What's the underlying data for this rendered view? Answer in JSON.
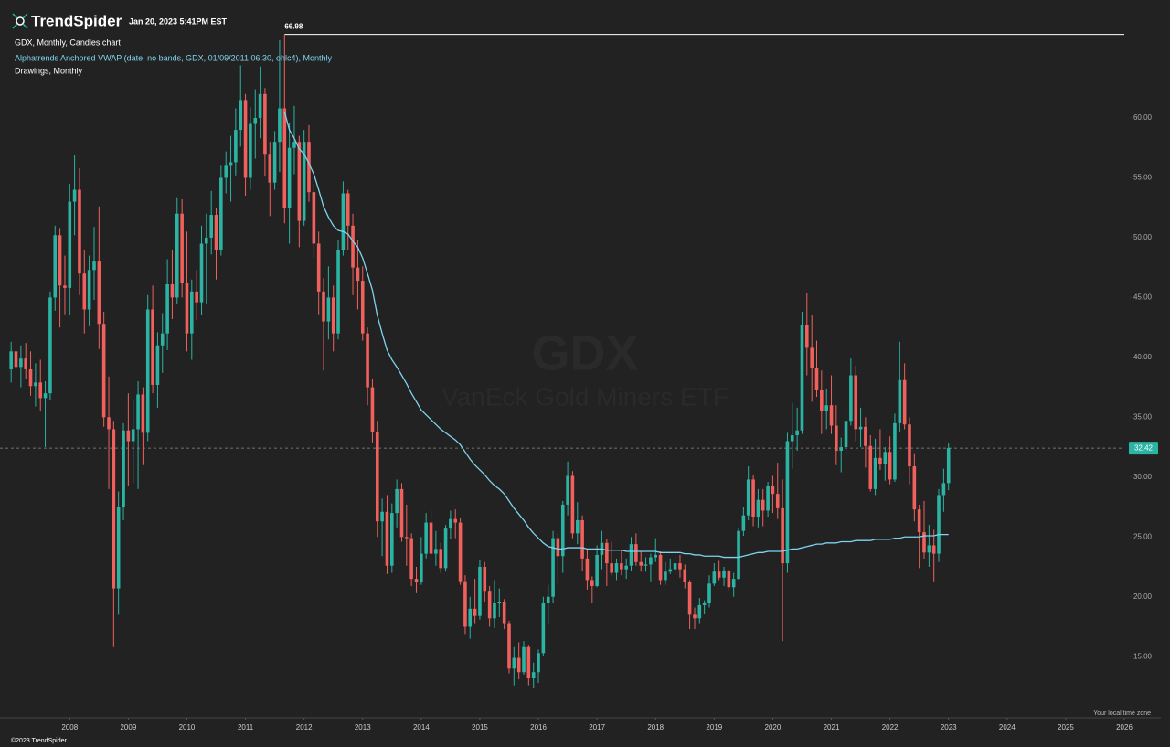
{
  "chart_data": {
    "type": "candlestick",
    "brand": "TrendSpider",
    "timestamp": "Jan 20, 2023 5:41PM EST",
    "title": "GDX, Monthly, Candles chart",
    "drawings": "Drawings, Monthly",
    "watermark_symbol": "GDX",
    "watermark_name": "VanEck Gold Miners ETF",
    "timezone_note": "Your local time zone",
    "copyright": "©2023 TrendSpider",
    "up_color": "#2bb3a3",
    "down_color": "#f0605d",
    "x": [
      2007,
      2007.083,
      2007.167,
      2007.25,
      2007.333,
      2007.417,
      2007.5,
      2007.583,
      2007.667,
      2007.75,
      2007.833,
      2007.917,
      2008,
      2008.083,
      2008.167,
      2008.25,
      2008.333,
      2008.417,
      2008.5,
      2008.583,
      2008.667,
      2008.75,
      2008.833,
      2008.917,
      2009,
      2009.083,
      2009.167,
      2009.25,
      2009.333,
      2009.417,
      2009.5,
      2009.583,
      2009.667,
      2009.75,
      2009.833,
      2009.917,
      2010,
      2010.083,
      2010.167,
      2010.25,
      2010.333,
      2010.417,
      2010.5,
      2010.583,
      2010.667,
      2010.75,
      2010.833,
      2010.917,
      2011,
      2011.083,
      2011.167,
      2011.25,
      2011.333,
      2011.417,
      2011.5,
      2011.583,
      2011.667,
      2011.75,
      2011.833,
      2011.917,
      2012,
      2012.083,
      2012.167,
      2012.25,
      2012.333,
      2012.417,
      2012.5,
      2012.583,
      2012.667,
      2012.75,
      2012.833,
      2012.917,
      2013,
      2013.083,
      2013.167,
      2013.25,
      2013.333,
      2013.417,
      2013.5,
      2013.583,
      2013.667,
      2013.75,
      2013.833,
      2013.917,
      2014,
      2014.083,
      2014.167,
      2014.25,
      2014.333,
      2014.417,
      2014.5,
      2014.583,
      2014.667,
      2014.75,
      2014.833,
      2014.917,
      2015,
      2015.083,
      2015.167,
      2015.25,
      2015.333,
      2015.417,
      2015.5,
      2015.583,
      2015.667,
      2015.75,
      2015.833,
      2015.917,
      2016,
      2016.083,
      2016.167,
      2016.25,
      2016.333,
      2016.417,
      2016.5,
      2016.583,
      2016.667,
      2016.75,
      2016.833,
      2016.917,
      2017,
      2017.083,
      2017.167,
      2017.25,
      2017.333,
      2017.417,
      2017.5,
      2017.583,
      2017.667,
      2017.75,
      2017.833,
      2017.917,
      2018,
      2018.083,
      2018.167,
      2018.25,
      2018.333,
      2018.417,
      2018.5,
      2018.583,
      2018.667,
      2018.75,
      2018.833,
      2018.917,
      2019,
      2019.083,
      2019.167,
      2019.25,
      2019.333,
      2019.417,
      2019.5,
      2019.583,
      2019.667,
      2019.75,
      2019.833,
      2019.917,
      2020,
      2020.083,
      2020.167,
      2020.25,
      2020.333,
      2020.417,
      2020.5,
      2020.583,
      2020.667,
      2020.75,
      2020.833,
      2020.917,
      2021,
      2021.083,
      2021.167,
      2021.25,
      2021.333,
      2021.417,
      2021.5,
      2021.583,
      2021.667,
      2021.75,
      2021.833,
      2021.917,
      2022,
      2022.083,
      2022.167,
      2022.25,
      2022.333,
      2022.417,
      2022.5,
      2022.583,
      2022.667,
      2022.75,
      2022.833,
      2022.917,
      2023
    ],
    "open": [
      39.0,
      40.5,
      39.2,
      39.9,
      39.0,
      37.6,
      37.9,
      36.6,
      37.0,
      45.0,
      50.2,
      46.0,
      45.8,
      53.0,
      54.0,
      47.0,
      44.0,
      47.3,
      48.0,
      42.8,
      35.0,
      34.0,
      20.7,
      27.5,
      33.9,
      33.0,
      34.0,
      36.9,
      33.7,
      44.0,
      37.7,
      41.0,
      42.0,
      46.1,
      45.0,
      52.0,
      46.2,
      42.0,
      45.5,
      44.6,
      49.5,
      50.0,
      51.9,
      49.0,
      55.0,
      56.0,
      56.3,
      59.0,
      61.5,
      55.0,
      59.5,
      60.0,
      62.0,
      57.0,
      54.6,
      58.0,
      60.8,
      52.5,
      57.5,
      58.0,
      51.4,
      58.0,
      53.8,
      49.5,
      45.5,
      43.0,
      45.0,
      42.0,
      49.0,
      53.7,
      51.0,
      47.5,
      46.4,
      42.0,
      37.5,
      33.8,
      26.3,
      27.1,
      22.6,
      27.0,
      29.0,
      25.0,
      24.9,
      21.5,
      21.2,
      23.6,
      26.2,
      23.6,
      24.0,
      22.4,
      25.7,
      26.5,
      26.2,
      21.3,
      17.5,
      19.0,
      18.4,
      22.5,
      20.5,
      18.2,
      19.5,
      19.6,
      17.8,
      14.0,
      14.9,
      13.7,
      15.8,
      13.2,
      13.7,
      15.3,
      19.5,
      20.0,
      24.9,
      23.4,
      27.7,
      30.1,
      25.3,
      26.4,
      23.2,
      21.4,
      20.9,
      23.5,
      24.5,
      22.8,
      22.0,
      22.8,
      22.3,
      22.6,
      24.4,
      22.9,
      22.6,
      22.7,
      23.3,
      23.5,
      21.4,
      22.1,
      22.3,
      22.8,
      22.3,
      21.2,
      18.5,
      18.2,
      19.3,
      19.5,
      21.1,
      22.1,
      21.6,
      22.2,
      20.8,
      21.5,
      25.5,
      26.8,
      29.8,
      26.7,
      28.1,
      27.2,
      29.3,
      28.6,
      27.4,
      22.8,
      33.0,
      33.5,
      33.9,
      42.7,
      40.8,
      39.1,
      37.3,
      35.5,
      36.0,
      34.3,
      32.2,
      32.5,
      34.7,
      38.5,
      34.0,
      34.2,
      32.6,
      29.0,
      31.6,
      31.1,
      32.1,
      29.8,
      34.5,
      38.1,
      34.4,
      30.9,
      27.3,
      25.4,
      23.7,
      24.3,
      23.6,
      28.5,
      29.5
    ],
    "high": [
      41.3,
      42.0,
      41.0,
      41.2,
      40.5,
      39.5,
      39.8,
      38.0,
      45.5,
      51.0,
      50.8,
      48.5,
      54.5,
      56.9,
      55.8,
      49.0,
      48.5,
      50.9,
      52.6,
      43.8,
      38.4,
      34.7,
      28.8,
      34.5,
      37.0,
      36.5,
      38.0,
      37.5,
      45.2,
      46.0,
      42.1,
      43.7,
      48.2,
      49.0,
      53.3,
      53.2,
      50.5,
      46.5,
      47.3,
      51.0,
      52.0,
      53.9,
      52.5,
      56.0,
      57.2,
      58.5,
      60.8,
      64.4,
      62.0,
      60.9,
      62.4,
      64.3,
      62.5,
      58.0,
      58.9,
      66.5,
      66.98,
      59.6,
      61.0,
      58.5,
      59.0,
      59.4,
      54.5,
      50.5,
      46.6,
      47.6,
      46.0,
      49.8,
      54.7,
      54.0,
      52.0,
      49.8,
      47.6,
      42.5,
      38.2,
      34.7,
      28.2,
      28.5,
      27.8,
      29.8,
      29.5,
      27.7,
      25.3,
      22.5,
      25.0,
      27.0,
      27.3,
      25.5,
      24.5,
      26.0,
      27.2,
      27.3,
      26.6,
      21.8,
      20.0,
      21.5,
      23.1,
      22.9,
      20.9,
      21.4,
      20.7,
      19.8,
      18.0,
      15.8,
      16.2,
      16.3,
      16.0,
      14.5,
      15.6,
      20.0,
      21.0,
      25.5,
      25.3,
      28.0,
      31.3,
      30.5,
      27.9,
      26.8,
      24.0,
      21.7,
      24.3,
      25.5,
      24.8,
      24.6,
      23.2,
      23.9,
      23.2,
      25.0,
      25.3,
      23.8,
      23.3,
      23.6,
      24.9,
      23.8,
      22.9,
      23.2,
      23.4,
      23.5,
      22.7,
      21.4,
      19.1,
      19.9,
      19.7,
      21.8,
      22.8,
      23.0,
      22.5,
      22.3,
      22.0,
      25.8,
      27.5,
      30.9,
      30.2,
      29.0,
      29.0,
      29.6,
      30.1,
      31.2,
      29.8,
      33.7,
      36.2,
      35.8,
      43.8,
      45.4,
      43.5,
      41.4,
      38.9,
      37.4,
      38.5,
      36.0,
      33.3,
      35.6,
      39.9,
      39.3,
      35.8,
      35.0,
      33.5,
      33.2,
      34.0,
      32.5,
      33.4,
      35.3,
      41.3,
      39.5,
      35.0,
      32.0,
      27.7,
      28.0,
      26.0,
      25.6,
      29.0,
      30.7,
      32.8
    ],
    "low": [
      37.9,
      38.5,
      37.5,
      38.2,
      36.8,
      35.9,
      35.5,
      32.5,
      36.4,
      43.9,
      42.5,
      43.6,
      43.5,
      50.2,
      45.2,
      42.0,
      42.6,
      44.8,
      40.7,
      34.2,
      29.0,
      15.8,
      18.5,
      26.4,
      29.3,
      29.5,
      29.0,
      31.0,
      33.0,
      37.0,
      35.8,
      38.7,
      40.6,
      43.2,
      44.5,
      45.0,
      40.5,
      39.8,
      43.1,
      43.5,
      44.5,
      48.6,
      46.5,
      48.5,
      53.7,
      53.0,
      55.2,
      57.6,
      53.5,
      54.0,
      56.6,
      58.3,
      55.1,
      51.8,
      54.0,
      55.5,
      51.2,
      49.5,
      55.3,
      49.2,
      51.0,
      53.0,
      48.3,
      43.6,
      38.9,
      41.5,
      40.5,
      41.5,
      48.5,
      49.0,
      45.2,
      44.0,
      41.4,
      36.0,
      32.9,
      25.0,
      23.4,
      21.9,
      22.0,
      25.8,
      24.6,
      22.6,
      20.9,
      20.3,
      21.0,
      23.2,
      22.9,
      22.6,
      22.0,
      22.1,
      24.8,
      24.9,
      21.0,
      16.9,
      16.5,
      17.8,
      18.1,
      19.6,
      17.5,
      17.4,
      18.3,
      17.3,
      13.6,
      12.6,
      13.1,
      13.5,
      12.6,
      12.4,
      12.8,
      15.1,
      17.8,
      19.5,
      21.1,
      22.0,
      26.8,
      24.9,
      24.4,
      22.2,
      20.6,
      19.5,
      20.8,
      22.3,
      20.9,
      21.8,
      21.4,
      21.8,
      21.5,
      22.2,
      22.6,
      22.1,
      22.1,
      21.3,
      22.9,
      21.0,
      21.0,
      21.9,
      21.9,
      21.6,
      20.7,
      17.3,
      17.3,
      17.8,
      18.6,
      19.1,
      20.9,
      21.4,
      20.9,
      20.5,
      20.0,
      21.4,
      25.1,
      26.4,
      25.9,
      25.8,
      25.9,
      26.7,
      27.0,
      26.5,
      16.3,
      22.0,
      30.7,
      32.2,
      33.6,
      38.5,
      36.3,
      36.7,
      33.6,
      34.0,
      33.6,
      31.0,
      30.4,
      31.8,
      34.3,
      33.0,
      32.5,
      30.8,
      28.8,
      28.5,
      30.6,
      29.7,
      29.4,
      29.6,
      33.8,
      34.0,
      29.4,
      26.3,
      22.4,
      23.2,
      22.5,
      21.3,
      22.9,
      27.1,
      28.9
    ],
    "close": [
      40.5,
      39.2,
      39.9,
      39.0,
      37.6,
      37.9,
      36.6,
      37.0,
      45.0,
      50.2,
      46.0,
      45.8,
      53.0,
      54.0,
      47.0,
      44.0,
      47.3,
      48.0,
      42.8,
      35.0,
      34.0,
      20.7,
      27.5,
      33.9,
      33.0,
      34.0,
      36.9,
      33.7,
      44.0,
      37.7,
      41.0,
      42.0,
      46.1,
      45.0,
      52.0,
      46.2,
      42.0,
      45.5,
      44.6,
      49.5,
      50.0,
      51.9,
      49.0,
      55.0,
      56.0,
      56.3,
      59.0,
      61.5,
      55.0,
      59.5,
      60.0,
      62.0,
      57.0,
      54.6,
      58.0,
      60.8,
      52.5,
      57.5,
      58.0,
      51.4,
      58.0,
      53.8,
      49.5,
      45.5,
      43.0,
      45.0,
      42.0,
      49.0,
      53.7,
      51.0,
      47.5,
      46.4,
      42.0,
      37.5,
      33.8,
      26.3,
      27.1,
      22.6,
      27.0,
      29.0,
      25.0,
      24.9,
      21.5,
      21.2,
      23.6,
      26.2,
      23.6,
      24.0,
      22.4,
      25.7,
      26.5,
      26.2,
      21.3,
      17.5,
      19.0,
      18.4,
      22.5,
      20.5,
      18.2,
      19.5,
      19.6,
      17.8,
      14.0,
      14.9,
      13.7,
      15.8,
      13.2,
      13.7,
      15.3,
      19.5,
      20.0,
      24.9,
      23.4,
      27.7,
      30.1,
      25.3,
      26.4,
      23.2,
      21.4,
      20.9,
      23.5,
      24.5,
      22.8,
      22.0,
      22.8,
      22.3,
      22.6,
      24.4,
      22.9,
      22.6,
      22.7,
      23.3,
      23.5,
      21.4,
      22.1,
      22.3,
      22.8,
      22.3,
      21.2,
      18.5,
      18.2,
      19.3,
      19.5,
      21.1,
      22.1,
      21.6,
      22.2,
      20.8,
      21.5,
      25.5,
      26.8,
      29.8,
      26.7,
      28.1,
      27.2,
      29.3,
      28.6,
      27.4,
      22.8,
      33.0,
      33.5,
      33.9,
      42.7,
      40.8,
      39.1,
      37.3,
      35.5,
      36.0,
      34.3,
      32.2,
      32.5,
      34.7,
      38.5,
      34.0,
      34.2,
      32.6,
      29.0,
      31.6,
      31.1,
      32.1,
      29.8,
      34.5,
      38.1,
      34.4,
      30.9,
      27.3,
      25.4,
      23.7,
      24.3,
      23.6,
      28.5,
      29.5,
      32.42
    ],
    "vwap": {
      "name": "Alphatrends Anchored VWAP (date, no bands, GDX, 01/09/2011 06:30, ohlc4), Monthly",
      "color": "#7fd4ee",
      "values": [
        null,
        null,
        null,
        null,
        null,
        null,
        null,
        null,
        null,
        null,
        null,
        null,
        null,
        null,
        null,
        null,
        null,
        null,
        null,
        null,
        null,
        null,
        null,
        null,
        null,
        null,
        null,
        null,
        null,
        null,
        null,
        null,
        null,
        null,
        null,
        null,
        null,
        null,
        null,
        null,
        null,
        null,
        null,
        null,
        null,
        null,
        null,
        null,
        null,
        null,
        null,
        null,
        null,
        null,
        null,
        null,
        60.5,
        59.0,
        58.3,
        57.4,
        57.0,
        56.2,
        55.3,
        54.0,
        52.6,
        51.7,
        51.0,
        50.6,
        50.5,
        50.3,
        49.7,
        49.2,
        48.3,
        47.0,
        45.6,
        43.5,
        42.0,
        40.6,
        39.8,
        39.2,
        38.5,
        37.8,
        37.0,
        36.3,
        35.6,
        35.2,
        34.8,
        34.4,
        34.0,
        33.7,
        33.4,
        33.1,
        32.7,
        32.1,
        31.5,
        31.0,
        30.6,
        30.2,
        29.7,
        29.3,
        29.0,
        28.6,
        28.0,
        27.4,
        26.9,
        26.4,
        25.8,
        25.3,
        24.9,
        24.5,
        24.2,
        24.1,
        24.0,
        24.0,
        24.1,
        24.1,
        24.1,
        24.1,
        24.0,
        24.0,
        24.0,
        24.0,
        23.9,
        23.9,
        23.9,
        23.9,
        23.8,
        23.8,
        23.8,
        23.8,
        23.8,
        23.8,
        23.8,
        23.7,
        23.7,
        23.7,
        23.7,
        23.7,
        23.6,
        23.6,
        23.5,
        23.5,
        23.4,
        23.4,
        23.4,
        23.4,
        23.3,
        23.3,
        23.3,
        23.3,
        23.4,
        23.5,
        23.6,
        23.7,
        23.7,
        23.8,
        23.8,
        23.8,
        23.8,
        23.9,
        24.0,
        24.0,
        24.1,
        24.2,
        24.3,
        24.4,
        24.4,
        24.5,
        24.5,
        24.5,
        24.6,
        24.6,
        24.6,
        24.7,
        24.7,
        24.7,
        24.7,
        24.8,
        24.8,
        24.8,
        24.8,
        24.9,
        24.9,
        25.0,
        25.0,
        25.0,
        25.0,
        25.1,
        25.1,
        25.1,
        25.2,
        25.2,
        25.2
      ]
    },
    "high_line": 66.98,
    "price_line": 32.42,
    "xlim": [
      2006.81,
      2026.0
    ],
    "xticks": [
      2008,
      2009,
      2010,
      2011,
      2012,
      2013,
      2014,
      2015,
      2016,
      2017,
      2018,
      2019,
      2020,
      2021,
      2022,
      2023,
      2024,
      2025,
      2026
    ],
    "ylim": [
      9.9,
      69.85
    ],
    "yticks": [
      {
        "value": 15,
        "label": "15.00"
      },
      {
        "value": 20,
        "label": "20.00"
      },
      {
        "value": 25,
        "label": "25.00"
      },
      {
        "value": 30,
        "label": "30.00"
      },
      {
        "value": 35,
        "label": "35.00"
      },
      {
        "value": 40,
        "label": "40.00"
      },
      {
        "value": 45,
        "label": "45.00"
      },
      {
        "value": 50,
        "label": "50.00"
      },
      {
        "value": 55,
        "label": "55.00"
      },
      {
        "value": 60,
        "label": "60.00"
      }
    ]
  }
}
